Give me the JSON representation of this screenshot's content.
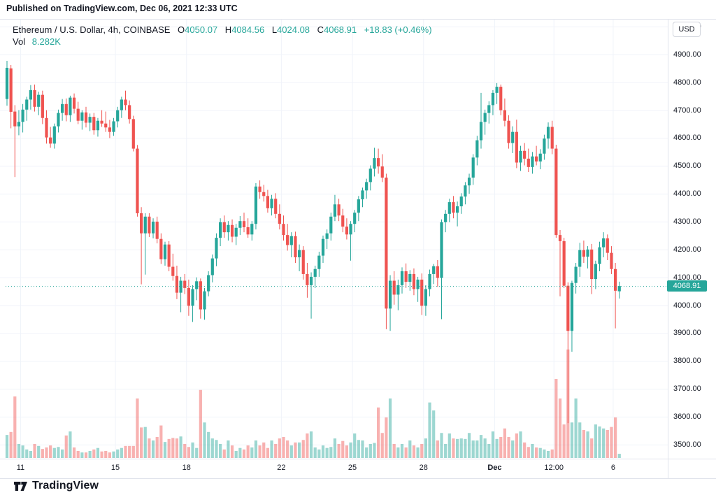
{
  "header": {
    "published": "Published on TradingView.com, Dec 06, 2021 12:33 UTC"
  },
  "legend": {
    "symbol": "Ethereum / U.S. Dollar, 4h, COINBASE",
    "o_label": "O",
    "o": "4050.07",
    "h_label": "H",
    "h": "4084.56",
    "l_label": "L",
    "l": "4024.08",
    "c_label": "C",
    "c": "4068.91",
    "change": "+18.83 (+0.46%)",
    "vol_label": "Vol",
    "vol_value": "8.282K"
  },
  "price_axis": {
    "currency_button": "USD"
  },
  "price_badge": "4068.91",
  "footer": {
    "brand": "TradingView"
  },
  "colors": {
    "up": "#26a69a",
    "down": "#ef5350",
    "vol_up": "rgba(38,166,154,0.45)",
    "vol_down": "rgba(239,83,80,0.45)",
    "grid": "#f0f3fa",
    "axis_text": "#131722",
    "border": "#e0e3eb",
    "badge_bg": "#26a69a",
    "badge_text": "#ffffff"
  },
  "chart_data": {
    "type": "candlestick",
    "title": "Ethereum / U.S. Dollar",
    "interval": "4h",
    "exchange": "COINBASE",
    "unit": "USD",
    "current_price": 4068.91,
    "last_candle": {
      "open": 4050.07,
      "high": 4084.56,
      "low": 4024.08,
      "close": 4068.91,
      "change": "+18.83",
      "change_pct": "+0.46%",
      "volume": "8.282K"
    },
    "y_axis": {
      "min": 3500,
      "max": 5000,
      "step": 100,
      "grid": true,
      "label_format": "2dp"
    },
    "x_ticks": [
      {
        "label": "11",
        "index": 3
      },
      {
        "label": "15",
        "index": 27
      },
      {
        "label": "18",
        "index": 45
      },
      {
        "label": "22",
        "index": 69
      },
      {
        "label": "25",
        "index": 87
      },
      {
        "label": "28",
        "index": 105
      },
      {
        "label": "Dec",
        "index": 123,
        "bold": true
      },
      {
        "label": "12:00",
        "index": 138
      },
      {
        "label": "6",
        "index": 153
      }
    ],
    "volume_unit": "K",
    "candles": [
      [
        4740,
        4877,
        4716,
        4852,
        46
      ],
      [
        4850,
        4862,
        4635,
        4694,
        52
      ],
      [
        4695,
        4718,
        4460,
        4642,
        123
      ],
      [
        4642,
        4700,
        4610,
        4658,
        28
      ],
      [
        4658,
        4722,
        4620,
        4702,
        25
      ],
      [
        4702,
        4748,
        4662,
        4738,
        17
      ],
      [
        4738,
        4790,
        4702,
        4772,
        14
      ],
      [
        4772,
        4792,
        4695,
        4712,
        28
      ],
      [
        4712,
        4766,
        4682,
        4755,
        24
      ],
      [
        4755,
        4770,
        4650,
        4672,
        18
      ],
      [
        4672,
        4700,
        4580,
        4602,
        21
      ],
      [
        4602,
        4640,
        4565,
        4580,
        25
      ],
      [
        4580,
        4652,
        4562,
        4642,
        20
      ],
      [
        4642,
        4702,
        4620,
        4690,
        22
      ],
      [
        4690,
        4740,
        4662,
        4722,
        17
      ],
      [
        4722,
        4742,
        4660,
        4682,
        45
      ],
      [
        4682,
        4752,
        4658,
        4745,
        53
      ],
      [
        4745,
        4760,
        4688,
        4705,
        21
      ],
      [
        4705,
        4730,
        4650,
        4662,
        14
      ],
      [
        4662,
        4700,
        4630,
        4692,
        11
      ],
      [
        4692,
        4712,
        4638,
        4655,
        11
      ],
      [
        4655,
        4688,
        4625,
        4676,
        14
      ],
      [
        4676,
        4690,
        4612,
        4628,
        17
      ],
      [
        4628,
        4672,
        4605,
        4662,
        20
      ],
      [
        4662,
        4700,
        4640,
        4652,
        13
      ],
      [
        4652,
        4695,
        4622,
        4638,
        14
      ],
      [
        4638,
        4665,
        4600,
        4622,
        11
      ],
      [
        4622,
        4672,
        4608,
        4660,
        13
      ],
      [
        4660,
        4712,
        4638,
        4700,
        17
      ],
      [
        4700,
        4748,
        4672,
        4738,
        20
      ],
      [
        4738,
        4770,
        4700,
        4718,
        24
      ],
      [
        4718,
        4735,
        4652,
        4668,
        24
      ],
      [
        4668,
        4680,
        4552,
        4562,
        24
      ],
      [
        4562,
        4575,
        4318,
        4330,
        119
      ],
      [
        4330,
        4352,
        4075,
        4258,
        61
      ],
      [
        4258,
        4330,
        4110,
        4318,
        62
      ],
      [
        4318,
        4330,
        4245,
        4258,
        39
      ],
      [
        4258,
        4312,
        4240,
        4300,
        35
      ],
      [
        4300,
        4318,
        4222,
        4238,
        42
      ],
      [
        4238,
        4258,
        4148,
        4165,
        65
      ],
      [
        4165,
        4228,
        4142,
        4218,
        32
      ],
      [
        4218,
        4230,
        4122,
        4138,
        38
      ],
      [
        4138,
        4185,
        4088,
        4105,
        40
      ],
      [
        4105,
        4142,
        4022,
        4045,
        39
      ],
      [
        4045,
        4102,
        3975,
        4088,
        43
      ],
      [
        4088,
        4112,
        4040,
        4062,
        28
      ],
      [
        4062,
        4092,
        3962,
        3998,
        22
      ],
      [
        3998,
        4072,
        3940,
        4058,
        31
      ],
      [
        4058,
        4100,
        4018,
        4086,
        20
      ],
      [
        4086,
        4096,
        3952,
        3985,
        136
      ],
      [
        3985,
        4062,
        3948,
        4050,
        71
      ],
      [
        4050,
        4122,
        4032,
        4108,
        52
      ],
      [
        4108,
        4182,
        4082,
        4168,
        39
      ],
      [
        4168,
        4258,
        4140,
        4242,
        36
      ],
      [
        4242,
        4312,
        4212,
        4298,
        28
      ],
      [
        4298,
        4322,
        4242,
        4262,
        17
      ],
      [
        4262,
        4302,
        4232,
        4288,
        35
      ],
      [
        4288,
        4308,
        4226,
        4246,
        25
      ],
      [
        4246,
        4292,
        4216,
        4278,
        14
      ],
      [
        4278,
        4320,
        4252,
        4302,
        20
      ],
      [
        4302,
        4332,
        4262,
        4280,
        17
      ],
      [
        4280,
        4312,
        4242,
        4254,
        25
      ],
      [
        4254,
        4302,
        4232,
        4292,
        21
      ],
      [
        4292,
        4438,
        4272,
        4426,
        35
      ],
      [
        4426,
        4448,
        4382,
        4406,
        25
      ],
      [
        4406,
        4432,
        4372,
        4392,
        31
      ],
      [
        4392,
        4414,
        4332,
        4348,
        20
      ],
      [
        4348,
        4396,
        4322,
        4382,
        35
      ],
      [
        4382,
        4402,
        4312,
        4328,
        28
      ],
      [
        4328,
        4362,
        4272,
        4292,
        39
      ],
      [
        4292,
        4322,
        4232,
        4252,
        42
      ],
      [
        4252,
        4292,
        4196,
        4216,
        35
      ],
      [
        4216,
        4262,
        4172,
        4248,
        25
      ],
      [
        4248,
        4264,
        4152,
        4172,
        31
      ],
      [
        4172,
        4218,
        4122,
        4198,
        31
      ],
      [
        4198,
        4212,
        4092,
        4112,
        36
      ],
      [
        4112,
        4152,
        4027,
        4072,
        49
      ],
      [
        4072,
        4118,
        3952,
        4102,
        53
      ],
      [
        4102,
        4142,
        4062,
        4130,
        21
      ],
      [
        4130,
        4192,
        4102,
        4178,
        17
      ],
      [
        4178,
        4250,
        4152,
        4238,
        25
      ],
      [
        4238,
        4272,
        4202,
        4258,
        20
      ],
      [
        4258,
        4332,
        4232,
        4318,
        22
      ],
      [
        4318,
        4396,
        4302,
        4362,
        39
      ],
      [
        4362,
        4382,
        4302,
        4322,
        28
      ],
      [
        4322,
        4346,
        4262,
        4282,
        34
      ],
      [
        4282,
        4312,
        4236,
        4254,
        25
      ],
      [
        4254,
        4302,
        4160,
        4292,
        31
      ],
      [
        4292,
        4342,
        4262,
        4332,
        49
      ],
      [
        4332,
        4392,
        4302,
        4380,
        36
      ],
      [
        4380,
        4422,
        4352,
        4412,
        35
      ],
      [
        4412,
        4454,
        4382,
        4442,
        21
      ],
      [
        4442,
        4502,
        4412,
        4490,
        28
      ],
      [
        4490,
        4565,
        4462,
        4528,
        30
      ],
      [
        4528,
        4562,
        4472,
        4498,
        101
      ],
      [
        4498,
        4542,
        4442,
        4458,
        50
      ],
      [
        4458,
        4472,
        3914,
        3988,
        81
      ],
      [
        3988,
        4108,
        3908,
        4088,
        119
      ],
      [
        4088,
        4122,
        4002,
        4038,
        28
      ],
      [
        4038,
        4092,
        3982,
        4072,
        21
      ],
      [
        4072,
        4136,
        4042,
        4122,
        28
      ],
      [
        4122,
        4150,
        4062,
        4084,
        21
      ],
      [
        4084,
        4126,
        4052,
        4112,
        35
      ],
      [
        4112,
        4132,
        4036,
        4058,
        25
      ],
      [
        4058,
        4102,
        4012,
        4092,
        21
      ],
      [
        4092,
        4114,
        3965,
        3998,
        28
      ],
      [
        3998,
        4072,
        3962,
        4058,
        39
      ],
      [
        4058,
        4128,
        4032,
        4112,
        111
      ],
      [
        4112,
        4148,
        4076,
        4140,
        95
      ],
      [
        4140,
        4162,
        4066,
        4098,
        35
      ],
      [
        4098,
        4308,
        3950,
        4298,
        50
      ],
      [
        4298,
        4342,
        4262,
        4328,
        28
      ],
      [
        4328,
        4382,
        4298,
        4370,
        49
      ],
      [
        4370,
        4392,
        4312,
        4332,
        39
      ],
      [
        4332,
        4372,
        4283,
        4355,
        38
      ],
      [
        4355,
        4402,
        4328,
        4390,
        39
      ],
      [
        4390,
        4442,
        4362,
        4430,
        38
      ],
      [
        4430,
        4472,
        4400,
        4458,
        50
      ],
      [
        4458,
        4542,
        4432,
        4530,
        35
      ],
      [
        4530,
        4608,
        4502,
        4592,
        35
      ],
      [
        4592,
        4762,
        4562,
        4658,
        46
      ],
      [
        4658,
        4702,
        4612,
        4690,
        39
      ],
      [
        4690,
        4732,
        4652,
        4718,
        28
      ],
      [
        4718,
        4772,
        4682,
        4762,
        53
      ],
      [
        4762,
        4797,
        4722,
        4784,
        38
      ],
      [
        4784,
        4792,
        4682,
        4700,
        42
      ],
      [
        4700,
        4742,
        4642,
        4662,
        59
      ],
      [
        4662,
        4682,
        4562,
        4582,
        42
      ],
      [
        4582,
        4642,
        4546,
        4622,
        35
      ],
      [
        4622,
        4666,
        4492,
        4512,
        49
      ],
      [
        4512,
        4572,
        4482,
        4554,
        53
      ],
      [
        4554,
        4582,
        4502,
        4526,
        31
      ],
      [
        4526,
        4562,
        4478,
        4496,
        22
      ],
      [
        4496,
        4550,
        4472,
        4534,
        28
      ],
      [
        4534,
        4572,
        4502,
        4516,
        21
      ],
      [
        4516,
        4560,
        4488,
        4544,
        20
      ],
      [
        4544,
        4612,
        4522,
        4598,
        17
      ],
      [
        4598,
        4656,
        4562,
        4640,
        14
      ],
      [
        4640,
        4662,
        4542,
        4562,
        17
      ],
      [
        4562,
        4576,
        4242,
        4252,
        158
      ],
      [
        4252,
        4270,
        4032,
        4230,
        119
      ],
      [
        4230,
        4242,
        4062,
        4070,
        67
      ],
      [
        4070,
        4082,
        3577,
        3908,
        217
      ],
      [
        3908,
        4088,
        3833,
        4080,
        71
      ],
      [
        4080,
        4152,
        4042,
        4138,
        119
      ],
      [
        4138,
        4224,
        4102,
        4198,
        71
      ],
      [
        4198,
        4232,
        4152,
        4174,
        56
      ],
      [
        4174,
        4212,
        4132,
        4200,
        53
      ],
      [
        4200,
        4220,
        4040,
        4094,
        39
      ],
      [
        4094,
        4160,
        4058,
        4148,
        67
      ],
      [
        4148,
        4228,
        4122,
        4208,
        63
      ],
      [
        4208,
        4262,
        4172,
        4240,
        59
      ],
      [
        4240,
        4254,
        4162,
        4188,
        56
      ],
      [
        4188,
        4212,
        4112,
        4130,
        62
      ],
      [
        4130,
        4152,
        3917,
        4052,
        81
      ],
      [
        4050.07,
        4084.56,
        4024.08,
        4068.91,
        8.282
      ]
    ]
  }
}
